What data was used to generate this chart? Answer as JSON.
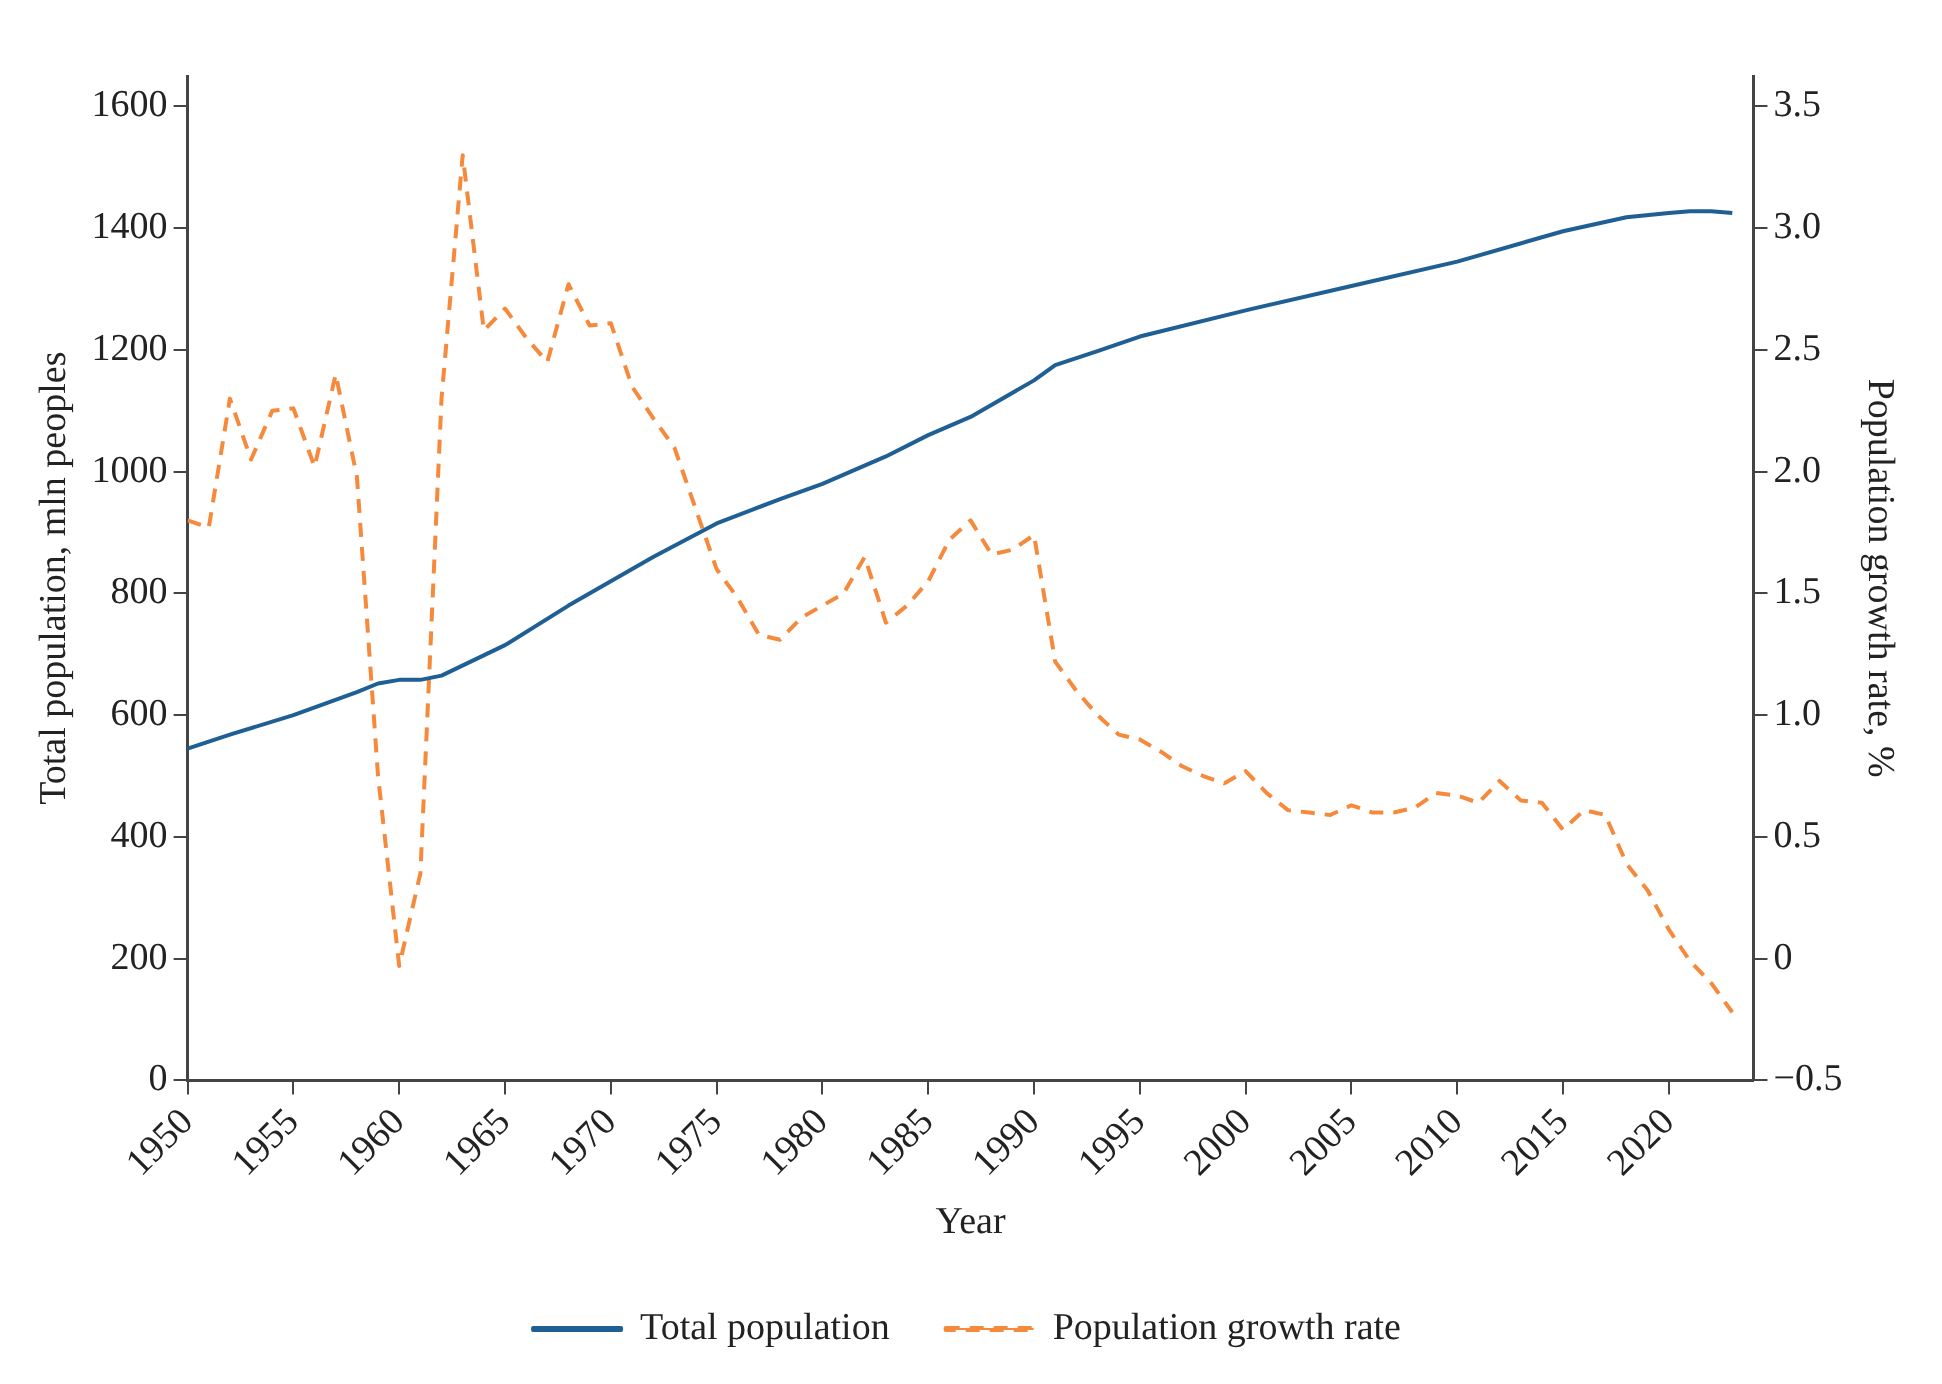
{
  "chart_data": {
    "type": "line",
    "xlabel": "Year",
    "ylabel": "Total population, mln peoples",
    "y2label": "Population growth rate, %",
    "xlim": [
      1950,
      2024
    ],
    "xticks": [
      1950,
      1955,
      1960,
      1965,
      1970,
      1975,
      1980,
      1985,
      1990,
      1995,
      2000,
      2005,
      2010,
      2015,
      2020
    ],
    "ylim": [
      0,
      1650
    ],
    "yticks": [
      0,
      200,
      400,
      600,
      800,
      1000,
      1200,
      1400,
      1600
    ],
    "y2lim": [
      -0.5,
      3.625
    ],
    "y2ticks": [
      -0.5,
      0,
      0.5,
      {
        "value": 1,
        "label": "1.0"
      },
      1.5,
      {
        "value": 2,
        "label": "2.0"
      },
      2.5,
      {
        "value": 3,
        "label": "3.0"
      },
      3.5
    ],
    "grid": false,
    "legend": "bottom",
    "marker": "none",
    "series": [
      {
        "name": "Total population",
        "color": "#1f5f94",
        "line_style": "solid",
        "x": [
          1950,
          1952,
          1955,
          1958,
          1959,
          1960,
          1961,
          1962,
          1965,
          1968,
          1970,
          1972,
          1975,
          1978,
          1980,
          1983,
          1985,
          1987,
          1990,
          1991,
          1993,
          1995,
          2000,
          2005,
          2010,
          2015,
          2018,
          2020,
          2021,
          2022,
          2023
        ],
        "values": [
          545,
          568,
          600,
          638,
          652,
          658,
          658,
          665,
          715,
          780,
          820,
          860,
          915,
          955,
          980,
          1025,
          1060,
          1090,
          1150,
          1175,
          1198,
          1222,
          1265,
          1305,
          1345,
          1395,
          1418,
          1425,
          1428,
          1428,
          1425
        ]
      },
      {
        "name": "Population growth rate",
        "color": "#f58a3c",
        "line_style": "dashed",
        "axis": "y2",
        "x": [
          1950,
          1951,
          1952,
          1953,
          1954,
          1955,
          1956,
          1957,
          1958,
          1959,
          1960,
          1961,
          1962,
          1963,
          1964,
          1965,
          1966,
          1967,
          1968,
          1969,
          1970,
          1971,
          1972,
          1973,
          1974,
          1975,
          1976,
          1977,
          1978,
          1979,
          1980,
          1981,
          1982,
          1983,
          1984,
          1985,
          1986,
          1987,
          1988,
          1989,
          1990,
          1991,
          1992,
          1993,
          1994,
          1995,
          1996,
          1997,
          1998,
          1999,
          2000,
          2001,
          2002,
          2003,
          2004,
          2005,
          2006,
          2007,
          2008,
          2009,
          2010,
          2011,
          2012,
          2013,
          2014,
          2015,
          2016,
          2017,
          2018,
          2019,
          2020,
          2021,
          2022,
          2023
        ],
        "values": [
          1.8,
          1.77,
          2.3,
          2.05,
          2.25,
          2.26,
          2.02,
          2.4,
          1.98,
          0.75,
          -0.03,
          0.35,
          2.3,
          3.3,
          2.58,
          2.67,
          2.55,
          2.45,
          2.77,
          2.6,
          2.61,
          2.35,
          2.22,
          2.1,
          1.85,
          1.6,
          1.48,
          1.33,
          1.31,
          1.4,
          1.45,
          1.5,
          1.65,
          1.38,
          1.45,
          1.55,
          1.72,
          1.8,
          1.66,
          1.68,
          1.74,
          1.22,
          1.1,
          1.0,
          0.92,
          0.9,
          0.85,
          0.79,
          0.75,
          0.72,
          0.77,
          0.68,
          0.61,
          0.6,
          0.59,
          0.63,
          0.6,
          0.6,
          0.62,
          0.68,
          0.67,
          0.64,
          0.73,
          0.65,
          0.64,
          0.53,
          0.61,
          0.59,
          0.39,
          0.28,
          0.12,
          -0.01,
          -0.1,
          -0.22
        ]
      }
    ]
  }
}
